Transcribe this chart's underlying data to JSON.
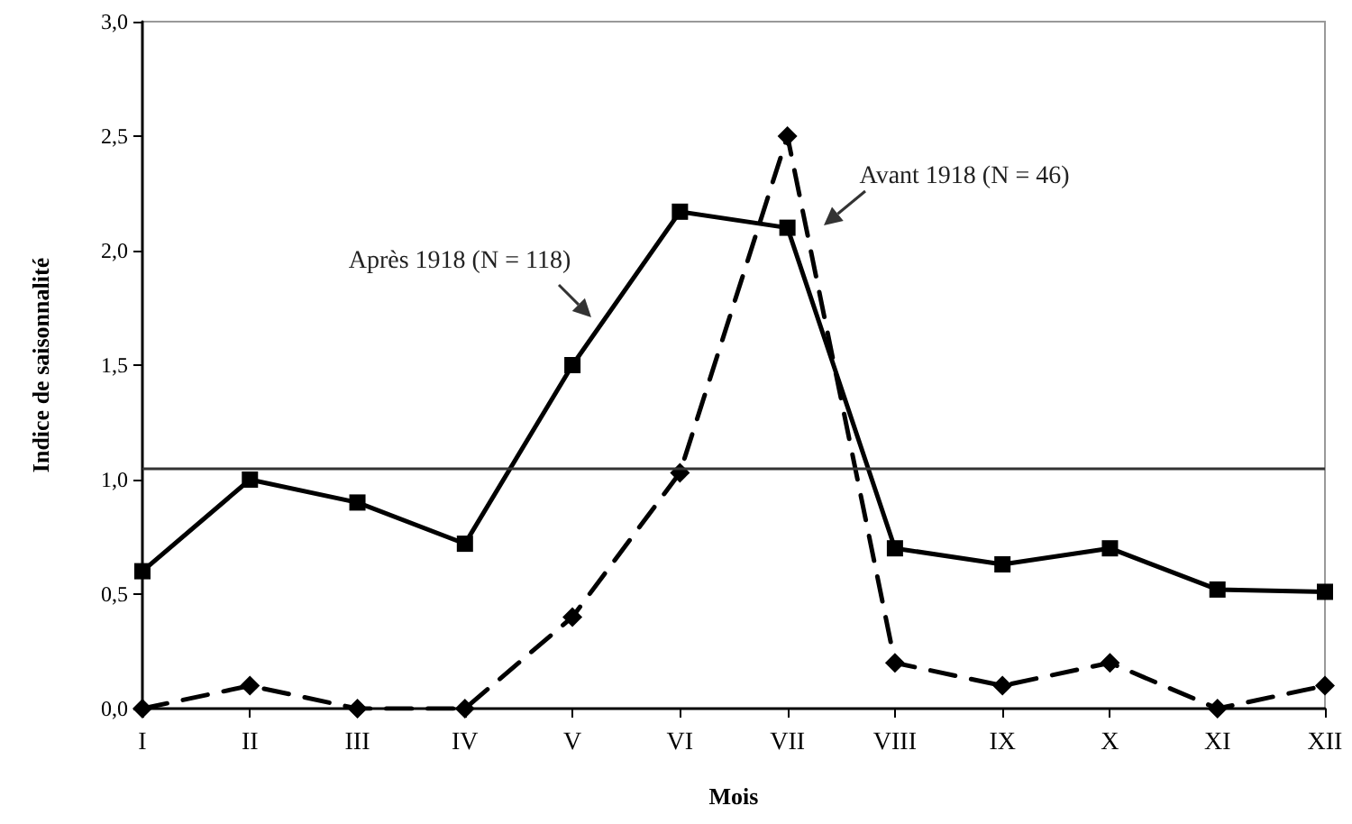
{
  "chart_data": {
    "type": "line",
    "xlabel": "Mois",
    "ylabel": "Indice de saisonnalité",
    "categories": [
      "I",
      "II",
      "III",
      "IV",
      "V",
      "VI",
      "VII",
      "VIII",
      "IX",
      "X",
      "XI",
      "XII"
    ],
    "series": [
      {
        "color": "#000000",
        "marker": "square",
        "line_style": "solid",
        "values": [
          0.6,
          1.0,
          0.9,
          0.72,
          1.5,
          2.17,
          2.1,
          0.7,
          0.63,
          0.7,
          0.52,
          0.51
        ]
      },
      {
        "color": "#000000",
        "marker": "diamond",
        "line_style": "dashed",
        "values": [
          0,
          0.1,
          0,
          0,
          0.4,
          1.03,
          2.5,
          0.2,
          0.1,
          0.2,
          0,
          0.1
        ]
      }
    ],
    "ylim": [
      0,
      3
    ],
    "yticks": [
      {
        "value": 0,
        "label": "0,0"
      },
      {
        "value": 0.5,
        "label": "0,5"
      },
      {
        "value": 1,
        "label": "1,0"
      },
      {
        "value": 1.5,
        "label": "1,5"
      },
      {
        "value": 2,
        "label": "2,0"
      },
      {
        "value": 2.5,
        "label": "2,5"
      },
      {
        "value": 3,
        "label": "3,0"
      }
    ],
    "ref_lines": [
      {
        "axis": "y",
        "value": 1.05,
        "color": "#333333"
      }
    ],
    "annotations": [
      "Après 1918 (N = 118)",
      "Avant 1918 (N = 46)"
    ],
    "grid": false
  }
}
